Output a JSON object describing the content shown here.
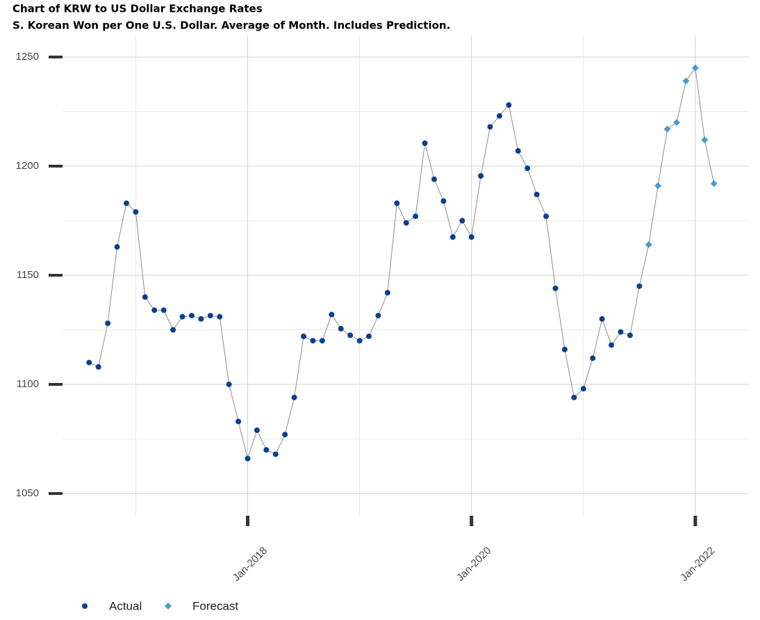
{
  "chart_data": {
    "type": "line",
    "title": "Chart of KRW to US Dollar Exchange Rates",
    "subtitle": "S. Korean Won per One U.S. Dollar.  Average of Month.  Includes Prediction.",
    "x": [
      "2016-08",
      "2016-09",
      "2016-10",
      "2016-11",
      "2016-12",
      "2017-01",
      "2017-02",
      "2017-03",
      "2017-04",
      "2017-05",
      "2017-06",
      "2017-07",
      "2017-08",
      "2017-09",
      "2017-10",
      "2017-11",
      "2017-12",
      "2018-01",
      "2018-02",
      "2018-03",
      "2018-04",
      "2018-05",
      "2018-06",
      "2018-07",
      "2018-08",
      "2018-09",
      "2018-10",
      "2018-11",
      "2018-12",
      "2019-01",
      "2019-02",
      "2019-03",
      "2019-04",
      "2019-05",
      "2019-06",
      "2019-07",
      "2019-08",
      "2019-09",
      "2019-10",
      "2019-11",
      "2019-12",
      "2020-01",
      "2020-02",
      "2020-03",
      "2020-04",
      "2020-05",
      "2020-06",
      "2020-07",
      "2020-08",
      "2020-09",
      "2020-10",
      "2020-11",
      "2020-12",
      "2021-01",
      "2021-02",
      "2021-03",
      "2021-04",
      "2021-05",
      "2021-06",
      "2021-07",
      "2021-08",
      "2021-09",
      "2021-10",
      "2021-11",
      "2021-12",
      "2022-01",
      "2022-02",
      "2022-03"
    ],
    "series": [
      {
        "name": "Actual",
        "color": "#0b3f91",
        "marker": "circle",
        "values": [
          1110,
          1108,
          1128,
          1163,
          1183,
          1179,
          1140,
          1134,
          1134,
          1125,
          1131,
          1131.5,
          1130,
          1131.5,
          1131,
          1100,
          1083,
          1066,
          1079,
          1070,
          1068,
          1077,
          1094,
          1122,
          1120,
          1120,
          1132,
          1125.5,
          1122.5,
          1120,
          1122,
          1131.5,
          1142,
          1183,
          1174,
          1177,
          1210.5,
          1194,
          1184,
          1167.5,
          1175,
          1167.5,
          1195.5,
          1218,
          1223,
          1228,
          1207,
          1199,
          1187,
          1177,
          1144,
          1116,
          1094,
          1098,
          1112,
          1130,
          1118,
          1124,
          1122.5,
          1145,
          null,
          null,
          null,
          null,
          null,
          null,
          null,
          null
        ]
      },
      {
        "name": "Forecast",
        "color": "#4a9bd1",
        "marker": "diamond",
        "values": [
          null,
          null,
          null,
          null,
          null,
          null,
          null,
          null,
          null,
          null,
          null,
          null,
          null,
          null,
          null,
          null,
          null,
          null,
          null,
          null,
          null,
          null,
          null,
          null,
          null,
          null,
          null,
          null,
          null,
          null,
          null,
          null,
          null,
          null,
          null,
          null,
          null,
          null,
          null,
          null,
          null,
          null,
          null,
          null,
          null,
          null,
          null,
          null,
          null,
          null,
          null,
          null,
          null,
          null,
          null,
          null,
          null,
          null,
          null,
          null,
          1164,
          1191,
          1217,
          1220,
          1239,
          1245,
          1212,
          1192
        ]
      }
    ],
    "line_color": "#8c8c8c",
    "xlim": [
      "2016-05",
      "2022-06"
    ],
    "xticks": [
      {
        "value": "2018-01",
        "label": "Jan-2018"
      },
      {
        "value": "2020-01",
        "label": "Jan-2020"
      },
      {
        "value": "2022-01",
        "label": "Jan-2022"
      }
    ],
    "ylim": [
      1040,
      1260
    ],
    "yticks": [
      1050,
      1100,
      1150,
      1200,
      1250
    ],
    "grid": true,
    "legend": "bottom-left"
  }
}
